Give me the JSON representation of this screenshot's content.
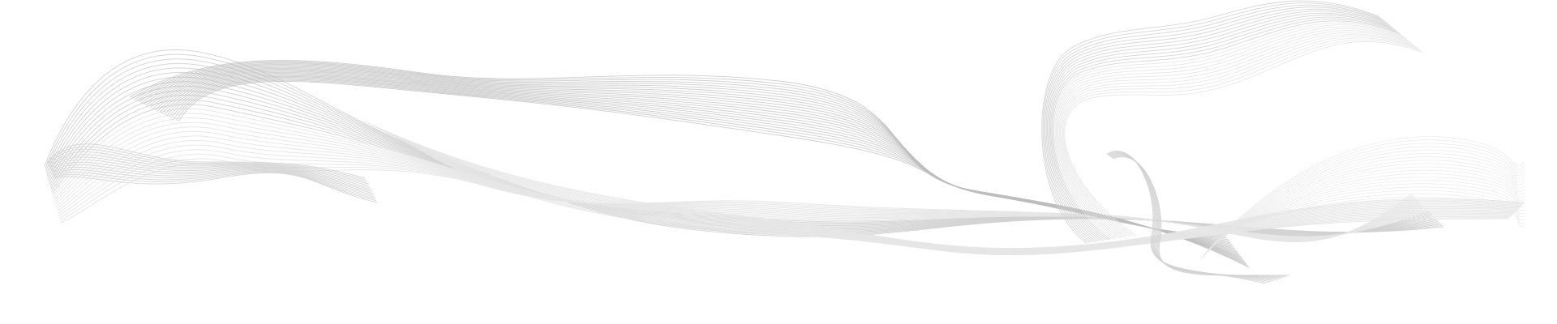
{
  "graphic": {
    "description_icon": "decorative-wave-lines",
    "colors": {
      "background": "#ffffff",
      "line_dark": "#bdbdbd",
      "line_mid": "#d2d2d2",
      "line_light": "#e6e6e6"
    }
  }
}
